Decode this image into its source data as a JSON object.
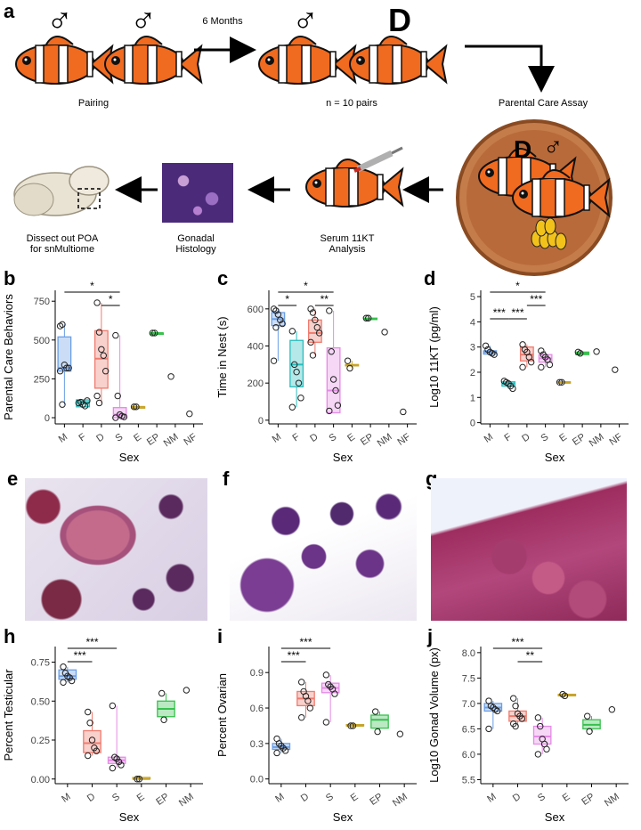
{
  "panel_letters": [
    "a",
    "b",
    "c",
    "d",
    "e",
    "f",
    "g",
    "h",
    "i",
    "j"
  ],
  "schematic": {
    "symbol_male": "♂",
    "symbol_d": "D",
    "arrow_label": "6 Months",
    "pairing_label": "Pairing",
    "n_label": "n = 10 pairs",
    "assay_label": "Parental Care Assay",
    "serum_label": "Serum 11KT\nAnalysis",
    "histology_label": "Gonadal\nHistology",
    "dissect_label": "Dissect out POA\nfor snMultiome"
  },
  "colors": {
    "M": "#6a9ee6",
    "F": "#2bbcbc",
    "D": "#ef7b6e",
    "S": "#e58be6",
    "E": "#c7a42a",
    "EP": "#39c04f",
    "NM": "#999999",
    "NF": "#999999",
    "fish_orange": "#f06a1f",
    "histo_purple": "#6b2f86",
    "dish": "#b86a3a"
  },
  "chart_data": [
    {
      "id": "b",
      "type": "box",
      "ylabel": "Parental Care Behaviors",
      "xlabel": "Sex",
      "categories": [
        "M",
        "F",
        "D",
        "S",
        "E",
        "EP",
        "NM",
        "NF"
      ],
      "ylim": [
        -40,
        820
      ],
      "yticks": [
        0,
        250,
        500,
        750
      ],
      "boxes": [
        [
          300,
          320,
          520
        ],
        [
          70,
          100,
          115
        ],
        [
          190,
          380,
          560
        ],
        [
          0,
          20,
          65
        ],
        [
          70,
          70,
          70
        ],
        [
          545,
          545,
          545
        ],
        null,
        null
      ],
      "points": [
        [
          590,
          600,
          340,
          320,
          320,
          300,
          85
        ],
        [
          95,
          100,
          85,
          75,
          110
        ],
        [
          740,
          550,
          440,
          400,
          300,
          140,
          95
        ],
        [
          530,
          140,
          20,
          10,
          5,
          0
        ],
        [
          70,
          70
        ],
        [
          545,
          545
        ],
        [
          265
        ],
        [
          25
        ]
      ],
      "sig": [
        {
          "a": 0,
          "b": 3,
          "label": "*",
          "level": 0
        },
        {
          "a": 2,
          "b": 3,
          "label": "*",
          "level": 1
        }
      ]
    },
    {
      "id": "c",
      "type": "box",
      "ylabel": "Time in Nest (s)",
      "xlabel": "Sex",
      "categories": [
        "M",
        "F",
        "D",
        "S",
        "E",
        "EP",
        "NM",
        "NF"
      ],
      "ylim": [
        -20,
        700
      ],
      "yticks": [
        0,
        200,
        400,
        600
      ],
      "boxes": [
        [
          510,
          545,
          580
        ],
        [
          180,
          300,
          430
        ],
        [
          420,
          470,
          540
        ],
        [
          40,
          160,
          390
        ],
        [
          295,
          295,
          300
        ],
        [
          545,
          545,
          550
        ],
        null,
        null
      ],
      "points": [
        [
          600,
          590,
          570,
          540,
          520,
          320,
          500
        ],
        [
          480,
          300,
          260,
          200,
          120,
          70
        ],
        [
          600,
          580,
          540,
          500,
          470,
          420,
          350
        ],
        [
          590,
          370,
          220,
          160,
          80,
          50
        ],
        [
          320,
          280
        ],
        [
          550,
          550
        ],
        [
          475
        ],
        [
          45
        ]
      ],
      "sig": [
        {
          "a": 0,
          "b": 3,
          "label": "*",
          "level": 0
        },
        {
          "a": 0,
          "b": 1,
          "label": "*",
          "level": 1
        },
        {
          "a": 2,
          "b": 3,
          "label": "**",
          "level": 1
        }
      ]
    },
    {
      "id": "d",
      "type": "box",
      "ylabel": "Log10 11KT (pg/ml)",
      "xlabel": "Sex",
      "categories": [
        "M",
        "F",
        "D",
        "S",
        "E",
        "EP",
        "NM",
        "NF"
      ],
      "ylim": [
        -0.05,
        5.25
      ],
      "yticks": [
        0,
        1,
        2,
        3,
        4,
        5
      ],
      "boxes": [
        [
          2.72,
          2.8,
          2.85
        ],
        [
          1.45,
          1.55,
          1.62
        ],
        [
          2.45,
          2.7,
          3.0
        ],
        [
          2.4,
          2.55,
          2.7
        ],
        [
          1.6,
          1.6,
          1.62
        ],
        [
          2.7,
          2.75,
          2.8
        ],
        null,
        null
      ],
      "points": [
        [
          3.05,
          2.9,
          2.8,
          2.75,
          2.7
        ],
        [
          1.65,
          1.6,
          1.55,
          1.45,
          1.35
        ],
        [
          3.1,
          2.9,
          2.8,
          2.6,
          2.4,
          2.2
        ],
        [
          2.85,
          2.7,
          2.6,
          2.5,
          2.3,
          2.2
        ],
        [
          1.6,
          1.6
        ],
        [
          2.8,
          2.75
        ],
        [
          2.82
        ],
        [
          2.1
        ]
      ],
      "sig": [
        {
          "a": 0,
          "b": 3,
          "label": "*",
          "level": 0
        },
        {
          "a": 2,
          "b": 3,
          "label": "***",
          "level": 1
        },
        {
          "a": 0,
          "b": 1,
          "label": "***",
          "level": 2
        },
        {
          "a": 1,
          "b": 2,
          "label": "***",
          "level": 2
        }
      ]
    },
    {
      "id": "h",
      "type": "box",
      "ylabel": "Percent Testicular",
      "xlabel": "Sex",
      "categories": [
        "M",
        "D",
        "S",
        "E",
        "EP",
        "NM"
      ],
      "ylim": [
        -0.03,
        0.85
      ],
      "yticks": [
        0.0,
        0.25,
        0.5,
        0.75
      ],
      "ytick_labels": [
        "0.00",
        "0.25",
        "0.50",
        "0.75"
      ],
      "boxes": [
        [
          0.64,
          0.66,
          0.7
        ],
        [
          0.17,
          0.23,
          0.31
        ],
        [
          0.1,
          0.12,
          0.14
        ],
        [
          0.0,
          0.0,
          0.01
        ],
        [
          0.4,
          0.45,
          0.5
        ],
        null
      ],
      "points": [
        [
          0.72,
          0.68,
          0.66,
          0.65,
          0.63,
          0.62
        ],
        [
          0.43,
          0.36,
          0.25,
          0.2,
          0.18,
          0.15
        ],
        [
          0.47,
          0.14,
          0.13,
          0.11,
          0.09,
          0.07
        ],
        [
          0.0,
          0.0
        ],
        [
          0.55,
          0.38
        ],
        [
          0.57
        ]
      ],
      "sig": [
        {
          "a": 0,
          "b": 2,
          "label": "***",
          "level": 0
        },
        {
          "a": 0,
          "b": 1,
          "label": "***",
          "level": 1
        }
      ]
    },
    {
      "id": "i",
      "type": "box",
      "ylabel": "Percent Ovarian",
      "xlabel": "Sex",
      "categories": [
        "M",
        "D",
        "S",
        "E",
        "EP",
        "NM"
      ],
      "ylim": [
        -0.04,
        1.12
      ],
      "yticks": [
        0.0,
        0.3,
        0.6,
        0.9
      ],
      "ytick_labels": [
        "0.0",
        "0.3",
        "0.6",
        "0.9"
      ],
      "boxes": [
        [
          0.25,
          0.27,
          0.3
        ],
        [
          0.62,
          0.68,
          0.74
        ],
        [
          0.73,
          0.77,
          0.81
        ],
        [
          0.45,
          0.45,
          0.46
        ],
        [
          0.43,
          0.5,
          0.54
        ],
        null
      ],
      "points": [
        [
          0.34,
          0.3,
          0.28,
          0.26,
          0.24,
          0.22
        ],
        [
          0.82,
          0.74,
          0.7,
          0.66,
          0.6,
          0.52
        ],
        [
          0.88,
          0.8,
          0.78,
          0.76,
          0.72,
          0.48
        ],
        [
          0.45,
          0.45
        ],
        [
          0.57,
          0.4
        ],
        [
          0.38
        ]
      ],
      "sig": [
        {
          "a": 0,
          "b": 2,
          "label": "***",
          "level": 0
        },
        {
          "a": 0,
          "b": 1,
          "label": "***",
          "level": 1
        }
      ]
    },
    {
      "id": "j",
      "type": "box",
      "ylabel": "Log10 Gonad Volume (px)",
      "xlabel": "Sex",
      "categories": [
        "M",
        "D",
        "S",
        "E",
        "EP",
        "NM"
      ],
      "ylim": [
        5.42,
        8.12
      ],
      "yticks": [
        5.5,
        6.0,
        6.5,
        7.0,
        7.5,
        8.0
      ],
      "ytick_labels": [
        "5.5",
        "6.0",
        "6.5",
        "7.0",
        "7.5",
        "8.0"
      ],
      "boxes": [
        [
          6.85,
          6.92,
          7.0
        ],
        [
          6.65,
          6.75,
          6.85
        ],
        [
          6.2,
          6.35,
          6.55
        ],
        [
          7.15,
          7.17,
          7.18
        ],
        [
          6.5,
          6.58,
          6.68
        ],
        null
      ],
      "points": [
        [
          7.05,
          6.95,
          6.92,
          6.88,
          6.85,
          6.5
        ],
        [
          7.1,
          6.95,
          6.8,
          6.75,
          6.7,
          6.6,
          6.55
        ],
        [
          6.72,
          6.55,
          6.3,
          6.2,
          6.1,
          6.0
        ],
        [
          7.18,
          7.15
        ],
        [
          6.75,
          6.45
        ],
        [
          6.88
        ]
      ],
      "sig": [
        {
          "a": 0,
          "b": 2,
          "label": "***",
          "level": 0
        },
        {
          "a": 1,
          "b": 2,
          "label": "**",
          "level": 1
        }
      ]
    }
  ]
}
